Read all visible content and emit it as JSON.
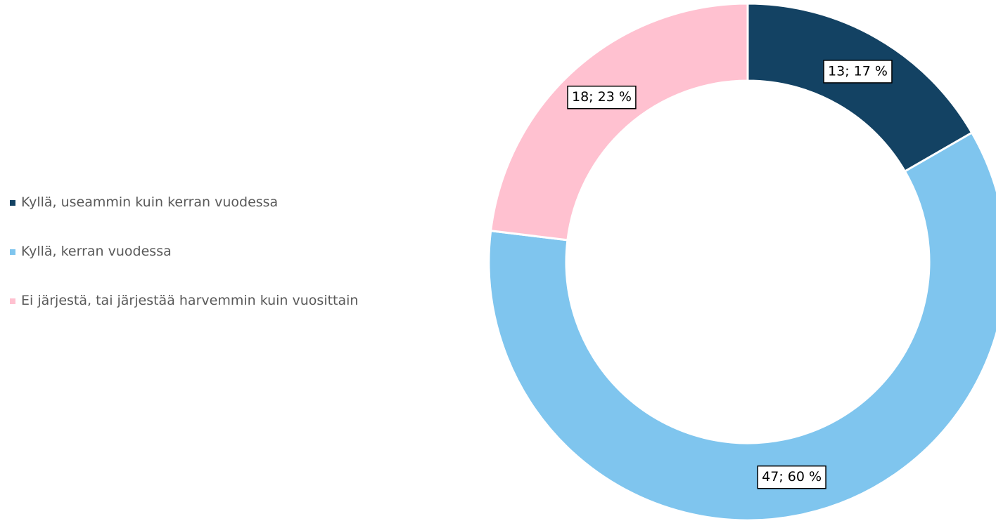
{
  "chart_data": {
    "type": "donut",
    "categories": [
      "Kyllä, useammin kuin kerran vuodessa",
      "Kyllä, kerran vuodessa",
      "Ei järjestä, tai järjestää harvemmin kuin vuosittain"
    ],
    "values": [
      13,
      47,
      18
    ],
    "value_labels": [
      "13; 17 %",
      "47; 60 %",
      "18; 23 %"
    ],
    "colors": [
      "#134263",
      "#7fc5ee",
      "#ffc1d0"
    ],
    "legend": "left"
  }
}
